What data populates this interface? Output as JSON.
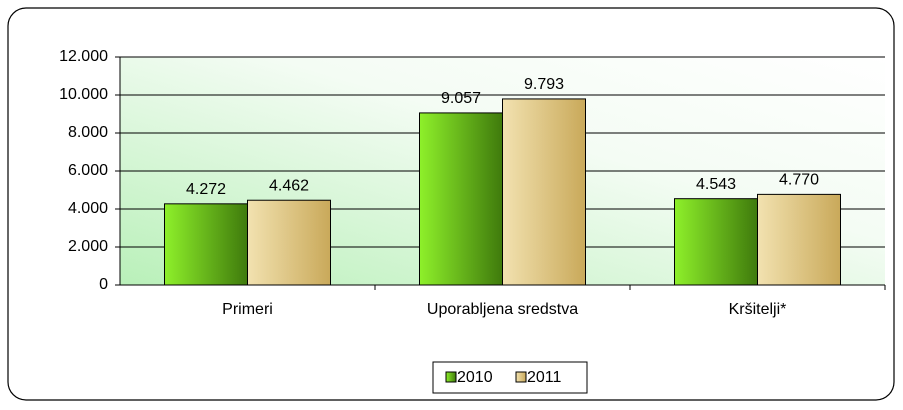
{
  "chart_data": {
    "type": "bar",
    "categories": [
      "Primeri",
      "Uporabljena sredstva",
      "Kršitelji*"
    ],
    "series": [
      {
        "name": "2010",
        "color": "#3f7a0c",
        "values": [
          4272,
          9057,
          4543
        ],
        "value_labels": [
          "4.272",
          "9.057",
          "4.543"
        ]
      },
      {
        "name": "2011",
        "color": "#c9a95a",
        "values": [
          4462,
          9793,
          4770
        ],
        "value_labels": [
          "4.462",
          "9.793",
          "4.770"
        ]
      }
    ],
    "ylim": [
      0,
      12000
    ],
    "yticks": [
      0,
      {
        "value": 2000,
        "label": "2.000"
      },
      {
        "value": 4000,
        "label": "4.000"
      },
      {
        "value": 6000,
        "label": "6.000"
      },
      {
        "value": 8000,
        "label": "8.000"
      },
      {
        "value": 10000,
        "label": "10.000"
      },
      {
        "value": 12000,
        "label": "12.000"
      }
    ],
    "grid": true,
    "legend": "bottom"
  }
}
